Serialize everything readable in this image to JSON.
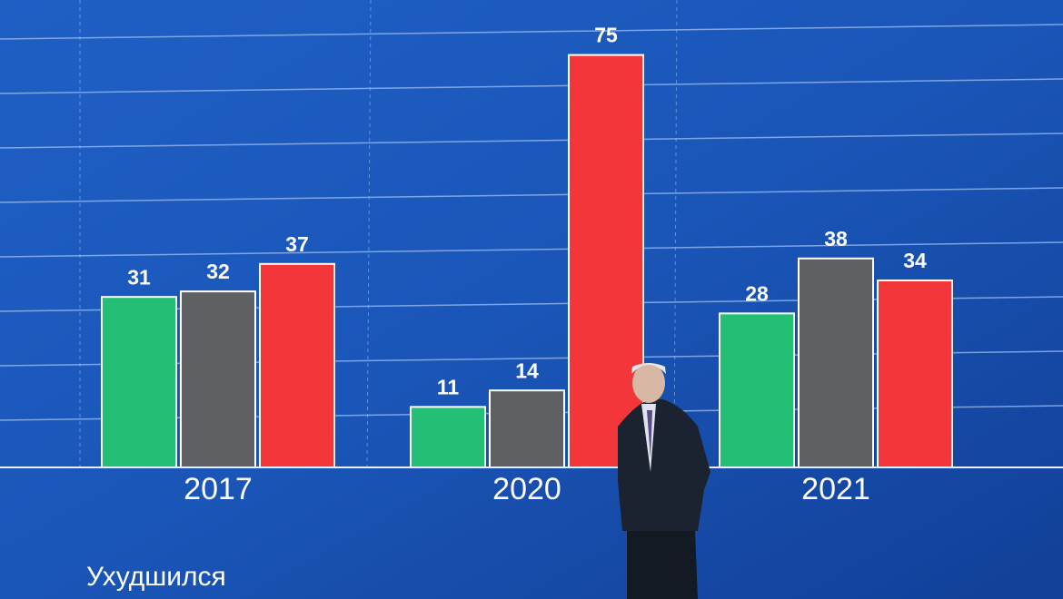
{
  "chart_data": {
    "type": "bar",
    "categories": [
      "2017",
      "2020",
      "2021"
    ],
    "series": [
      {
        "color": "#22bf74",
        "values": [
          31,
          11,
          28
        ]
      },
      {
        "color": "#5e6062",
        "values": [
          32,
          14,
          38
        ]
      },
      {
        "color": "#f2363a",
        "values": [
          37,
          75,
          34
        ]
      }
    ],
    "ylim": [
      0,
      85
    ],
    "caption": "Ухудшился"
  }
}
